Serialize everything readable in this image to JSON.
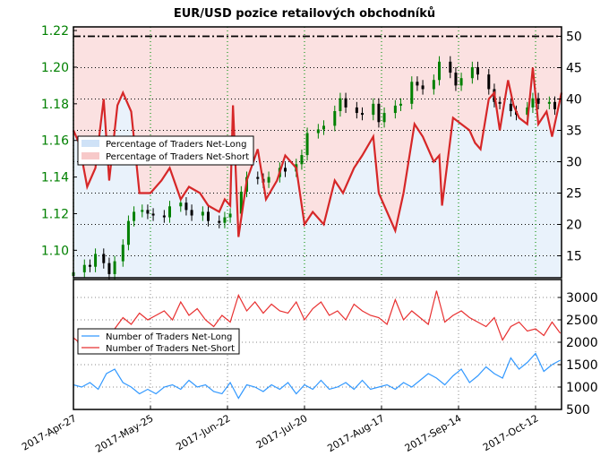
{
  "chart_data": [
    {
      "type": "candlestick+line",
      "title": "EUR/USD pozice retailových obchodníků",
      "left_axis": {
        "ylim": [
          1.085,
          1.222
        ],
        "ticks": [
          1.1,
          1.12,
          1.14,
          1.16,
          1.18,
          1.2,
          1.22
        ],
        "tick_labels": [
          "1.10",
          "1.12",
          "1.14",
          "1.16",
          "1.18",
          "1.20",
          "1.22"
        ],
        "color": "#008000"
      },
      "right_axis": {
        "ylim": [
          11.5,
          51.5
        ],
        "ticks": [
          15,
          20,
          25,
          30,
          35,
          40,
          45,
          50
        ],
        "tick_labels": [
          "15",
          "20",
          "25",
          "30",
          "35",
          "40",
          "45",
          "50"
        ]
      },
      "reference_line": 50,
      "legend": {
        "placement": "center-left",
        "entries": [
          "Percentage of Traders Net-Long",
          "Percentage of Traders Net-Short"
        ]
      },
      "colors": {
        "net_long_fill": "#cfe2f7",
        "net_short_fill": "#f7c9c9",
        "line": "#d62728",
        "up": "#008000",
        "down": "#000000",
        "grid_v": "#2ca02c"
      },
      "candles": {
        "dates": [
          "2017-04-27",
          "2017-05-01",
          "2017-05-03",
          "2017-05-05",
          "2017-05-08",
          "2017-05-10",
          "2017-05-12",
          "2017-05-15",
          "2017-05-17",
          "2017-05-19",
          "2017-05-22",
          "2017-05-24",
          "2017-05-26",
          "2017-05-30",
          "2017-06-01",
          "2017-06-05",
          "2017-06-07",
          "2017-06-09",
          "2017-06-13",
          "2017-06-15",
          "2017-06-19",
          "2017-06-21",
          "2017-06-23",
          "2017-06-27",
          "2017-06-29",
          "2017-07-03",
          "2017-07-05",
          "2017-07-07",
          "2017-07-11",
          "2017-07-13",
          "2017-07-17",
          "2017-07-19",
          "2017-07-21",
          "2017-07-25",
          "2017-07-27",
          "2017-07-31",
          "2017-08-02",
          "2017-08-04",
          "2017-08-08",
          "2017-08-10",
          "2017-08-14",
          "2017-08-16",
          "2017-08-18",
          "2017-08-22",
          "2017-08-24",
          "2017-08-28",
          "2017-08-30",
          "2017-09-01",
          "2017-09-05",
          "2017-09-07",
          "2017-09-11",
          "2017-09-13",
          "2017-09-15",
          "2017-09-19",
          "2017-09-21",
          "2017-09-25",
          "2017-09-27",
          "2017-09-29",
          "2017-10-03",
          "2017-10-05",
          "2017-10-09",
          "2017-10-11",
          "2017-10-13",
          "2017-10-17",
          "2017-10-19"
        ],
        "close": [
          1.088,
          1.092,
          1.091,
          1.098,
          1.093,
          1.087,
          1.094,
          1.103,
          1.116,
          1.121,
          1.122,
          1.12,
          1.119,
          1.118,
          1.124,
          1.126,
          1.122,
          1.119,
          1.121,
          1.116,
          1.115,
          1.118,
          1.12,
          1.132,
          1.14,
          1.139,
          1.137,
          1.14,
          1.145,
          1.143,
          1.147,
          1.152,
          1.164,
          1.166,
          1.168,
          1.176,
          1.183,
          1.178,
          1.175,
          1.174,
          1.18,
          1.17,
          1.175,
          1.179,
          1.18,
          1.192,
          1.19,
          1.188,
          1.193,
          1.203,
          1.197,
          1.19,
          1.194,
          1.2,
          1.196,
          1.188,
          1.181,
          1.18,
          1.176,
          1.174,
          1.178,
          1.183,
          1.18,
          1.181,
          1.177
        ]
      },
      "net_short_pct": {
        "dates": [
          "2017-04-27",
          "2017-04-29",
          "2017-05-02",
          "2017-05-05",
          "2017-05-08",
          "2017-05-10",
          "2017-05-13",
          "2017-05-15",
          "2017-05-18",
          "2017-05-21",
          "2017-05-25",
          "2017-05-29",
          "2017-06-01",
          "2017-06-05",
          "2017-06-08",
          "2017-06-12",
          "2017-06-15",
          "2017-06-19",
          "2017-06-21",
          "2017-06-23",
          "2017-06-24",
          "2017-06-26",
          "2017-06-29",
          "2017-07-03",
          "2017-07-06",
          "2017-07-10",
          "2017-07-13",
          "2017-07-17",
          "2017-07-20",
          "2017-07-23",
          "2017-07-27",
          "2017-07-31",
          "2017-08-03",
          "2017-08-07",
          "2017-08-10",
          "2017-08-14",
          "2017-08-16",
          "2017-08-18",
          "2017-08-22",
          "2017-08-25",
          "2017-08-29",
          "2017-09-01",
          "2017-09-05",
          "2017-09-07",
          "2017-09-08",
          "2017-09-12",
          "2017-09-15",
          "2017-09-18",
          "2017-09-20",
          "2017-09-22",
          "2017-09-25",
          "2017-09-27",
          "2017-09-29",
          "2017-10-02",
          "2017-10-04",
          "2017-10-06",
          "2017-10-09",
          "2017-10-11",
          "2017-10-13",
          "2017-10-16",
          "2017-10-18",
          "2017-10-20"
        ],
        "values": [
          35,
          33,
          26,
          29,
          40,
          27,
          39,
          41,
          38,
          25,
          25,
          27,
          29,
          24,
          26,
          25,
          23,
          22,
          24,
          23,
          39,
          18,
          27,
          32,
          24,
          27,
          31,
          29,
          20,
          22,
          20,
          27,
          25,
          29,
          31,
          34,
          25,
          23,
          19,
          25,
          36,
          34,
          30,
          31,
          23,
          37,
          36,
          35,
          33,
          32,
          40,
          41,
          35,
          43,
          39,
          37,
          36,
          45,
          36,
          38,
          34,
          41
        ]
      }
    },
    {
      "type": "line",
      "yaxis": {
        "ylim": [
          500,
          3400
        ],
        "ticks": [
          500,
          1000,
          1500,
          2000,
          2500,
          3000
        ],
        "tick_labels": [
          "500",
          "1000",
          "1500",
          "2000",
          "2500",
          "3000"
        ]
      },
      "legend": {
        "placement": "center-left",
        "entries": [
          "Number of Traders Net-Long",
          "Number of Traders Net-Short"
        ]
      },
      "x_tick_labels": [
        "2017-Apr-27",
        "2017-May-25",
        "2017-Jun-22",
        "2017-Jul-20",
        "2017-Aug-17",
        "2017-Sep-14",
        "2017-Oct-12"
      ],
      "series": [
        {
          "name": "Number of Traders Net-Long",
          "color": "#3399ff",
          "dates": [
            "2017-04-27",
            "2017-04-30",
            "2017-05-03",
            "2017-05-06",
            "2017-05-09",
            "2017-05-12",
            "2017-05-15",
            "2017-05-18",
            "2017-05-21",
            "2017-05-24",
            "2017-05-27",
            "2017-05-30",
            "2017-06-02",
            "2017-06-05",
            "2017-06-08",
            "2017-06-11",
            "2017-06-14",
            "2017-06-17",
            "2017-06-20",
            "2017-06-23",
            "2017-06-26",
            "2017-06-29",
            "2017-07-02",
            "2017-07-05",
            "2017-07-08",
            "2017-07-11",
            "2017-07-14",
            "2017-07-17",
            "2017-07-20",
            "2017-07-23",
            "2017-07-26",
            "2017-07-29",
            "2017-08-01",
            "2017-08-04",
            "2017-08-07",
            "2017-08-10",
            "2017-08-13",
            "2017-08-16",
            "2017-08-19",
            "2017-08-22",
            "2017-08-25",
            "2017-08-28",
            "2017-08-31",
            "2017-09-03",
            "2017-09-06",
            "2017-09-09",
            "2017-09-12",
            "2017-09-15",
            "2017-09-18",
            "2017-09-21",
            "2017-09-24",
            "2017-09-27",
            "2017-09-30",
            "2017-10-03",
            "2017-10-06",
            "2017-10-09",
            "2017-10-12",
            "2017-10-15",
            "2017-10-18",
            "2017-10-21"
          ],
          "values": [
            1050,
            1000,
            1100,
            950,
            1300,
            1400,
            1100,
            1000,
            850,
            950,
            850,
            1000,
            1050,
            950,
            1150,
            1000,
            1050,
            900,
            850,
            1100,
            750,
            1050,
            1000,
            900,
            1050,
            950,
            1100,
            850,
            1050,
            950,
            1150,
            950,
            1000,
            1100,
            950,
            1150,
            950,
            1000,
            1050,
            950,
            1100,
            1000,
            1150,
            1300,
            1200,
            1050,
            1250,
            1400,
            1100,
            1250,
            1450,
            1300,
            1200,
            1650,
            1400,
            1550,
            1750,
            1350,
            1500,
            1600
          ]
        },
        {
          "name": "Number of Traders Net-Short",
          "color": "#e83030",
          "dates": [
            "2017-04-27",
            "2017-04-30",
            "2017-05-03",
            "2017-05-06",
            "2017-05-09",
            "2017-05-12",
            "2017-05-15",
            "2017-05-18",
            "2017-05-21",
            "2017-05-24",
            "2017-05-27",
            "2017-05-30",
            "2017-06-02",
            "2017-06-05",
            "2017-06-08",
            "2017-06-11",
            "2017-06-14",
            "2017-06-17",
            "2017-06-20",
            "2017-06-23",
            "2017-06-26",
            "2017-06-29",
            "2017-07-02",
            "2017-07-05",
            "2017-07-08",
            "2017-07-11",
            "2017-07-14",
            "2017-07-17",
            "2017-07-20",
            "2017-07-23",
            "2017-07-26",
            "2017-07-29",
            "2017-08-01",
            "2017-08-04",
            "2017-08-07",
            "2017-08-10",
            "2017-08-13",
            "2017-08-16",
            "2017-08-19",
            "2017-08-22",
            "2017-08-25",
            "2017-08-28",
            "2017-08-31",
            "2017-09-03",
            "2017-09-06",
            "2017-09-09",
            "2017-09-12",
            "2017-09-15",
            "2017-09-18",
            "2017-09-21",
            "2017-09-24",
            "2017-09-27",
            "2017-09-30",
            "2017-10-03",
            "2017-10-06",
            "2017-10-09",
            "2017-10-12",
            "2017-10-15",
            "2017-10-18",
            "2017-10-21"
          ],
          "values": [
            2100,
            1950,
            2050,
            2150,
            2000,
            2300,
            2550,
            2400,
            2650,
            2500,
            2600,
            2700,
            2500,
            2900,
            2600,
            2750,
            2500,
            2350,
            2600,
            2450,
            3050,
            2700,
            2900,
            2650,
            2850,
            2700,
            2650,
            2900,
            2500,
            2750,
            2900,
            2600,
            2700,
            2500,
            2850,
            2700,
            2600,
            2550,
            2400,
            2950,
            2500,
            2700,
            2550,
            2400,
            3150,
            2450,
            2600,
            2700,
            2550,
            2450,
            2350,
            2550,
            2050,
            2350,
            2450,
            2250,
            2300,
            2150,
            2450,
            2200
          ]
        }
      ]
    }
  ]
}
